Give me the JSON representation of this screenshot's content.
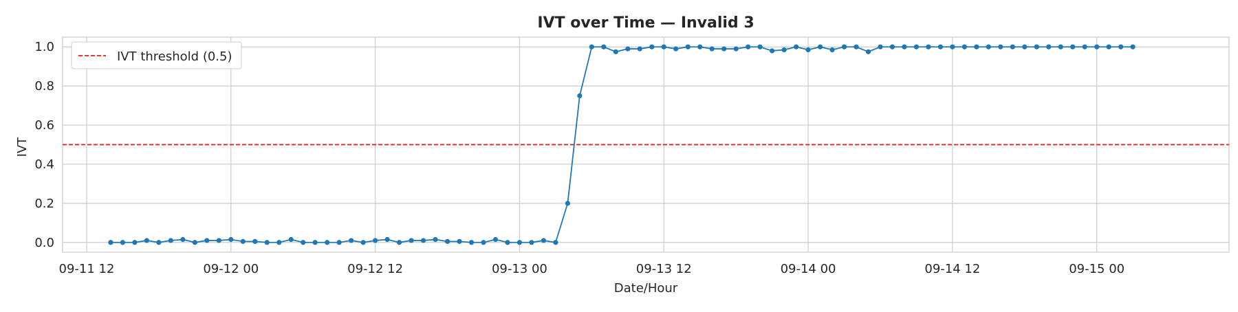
{
  "chart_data": {
    "type": "line",
    "title": "IVT over Time — Invalid 3",
    "xlabel": "Date/Hour",
    "ylabel": "IVT",
    "ylim": [
      -0.05,
      1.05
    ],
    "xlim": [
      "2023-09-11 10:00",
      "2023-09-15 11:00"
    ],
    "x_ticks": [
      "09-11 12",
      "09-12 00",
      "09-12 12",
      "09-13 00",
      "09-13 12",
      "09-14 00",
      "09-14 12",
      "09-15 00"
    ],
    "y_ticks": [
      "0.0",
      "0.2",
      "0.4",
      "0.6",
      "0.8",
      "1.0"
    ],
    "grid": true,
    "legend_position": "top-left",
    "colors": {
      "series": "#1f77b4",
      "threshold": "#e31a1c",
      "grid": "#cccccc"
    },
    "threshold": {
      "name": "IVT threshold (0.5)",
      "value": 0.5,
      "style": "dashed"
    },
    "x_start": "2023-09-11 14:00",
    "x_step_hours": 1,
    "series": [
      {
        "values": [
          0.0,
          0.0,
          0.0,
          0.01,
          0.0,
          0.01,
          0.015,
          0.0,
          0.01,
          0.01,
          0.015,
          0.005,
          0.005,
          0.0,
          0.0,
          0.015,
          0.0,
          0.0,
          0.0,
          0.0,
          0.01,
          0.0,
          0.01,
          0.015,
          0.0,
          0.01,
          0.01,
          0.015,
          0.005,
          0.005,
          0.0,
          0.0,
          0.015,
          0.0,
          0.0,
          0.0,
          0.01,
          0.0,
          0.2,
          0.75,
          1.0,
          1.0,
          0.975,
          0.99,
          0.99,
          1.0,
          1.0,
          0.99,
          1.0,
          1.0,
          0.99,
          0.99,
          0.99,
          1.0,
          1.0,
          0.98,
          0.985,
          1.0,
          0.985,
          1.0,
          0.985,
          1.0,
          1.0,
          0.975,
          1.0,
          1.0,
          1.0,
          1.0,
          1.0,
          1.0,
          1.0,
          1.0,
          1.0,
          1.0,
          1.0,
          1.0,
          1.0,
          1.0,
          1.0,
          1.0,
          1.0,
          1.0,
          1.0,
          1.0,
          1.0,
          1.0
        ]
      }
    ]
  }
}
